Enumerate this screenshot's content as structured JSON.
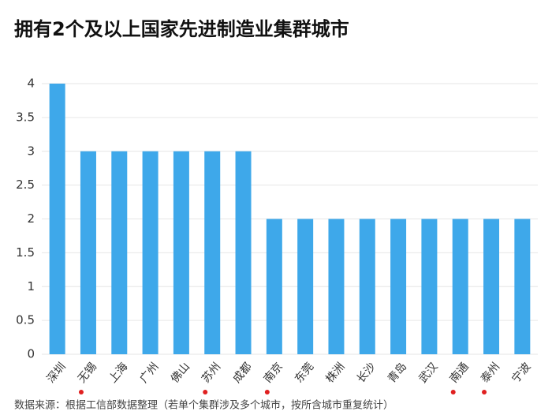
{
  "chart_data": {
    "type": "bar",
    "title": "拥有2个及以上国家先进制造业集群城市",
    "source": "数据来源：根据工信部数据整理（若单个集群涉及多个城市，按所含城市重复统计）",
    "categories": [
      "深圳",
      "无锡",
      "上海",
      "广州",
      "佛山",
      "苏州",
      "成都",
      "南京",
      "东莞",
      "株洲",
      "长沙",
      "青岛",
      "武汉",
      "南通",
      "泰州",
      "宁波"
    ],
    "values": [
      4,
      3,
      3,
      3,
      3,
      3,
      3,
      2,
      2,
      2,
      2,
      2,
      2,
      2,
      2,
      2
    ],
    "marked": [
      false,
      true,
      false,
      false,
      false,
      true,
      false,
      true,
      false,
      false,
      false,
      false,
      false,
      true,
      true,
      false
    ],
    "marker_color": "#e02020",
    "color": "#3ea8ea",
    "ylim": [
      0,
      4
    ],
    "yticks": [
      0,
      0.5,
      1,
      1.5,
      2,
      2.5,
      3,
      3.5,
      4
    ],
    "grid": true
  }
}
